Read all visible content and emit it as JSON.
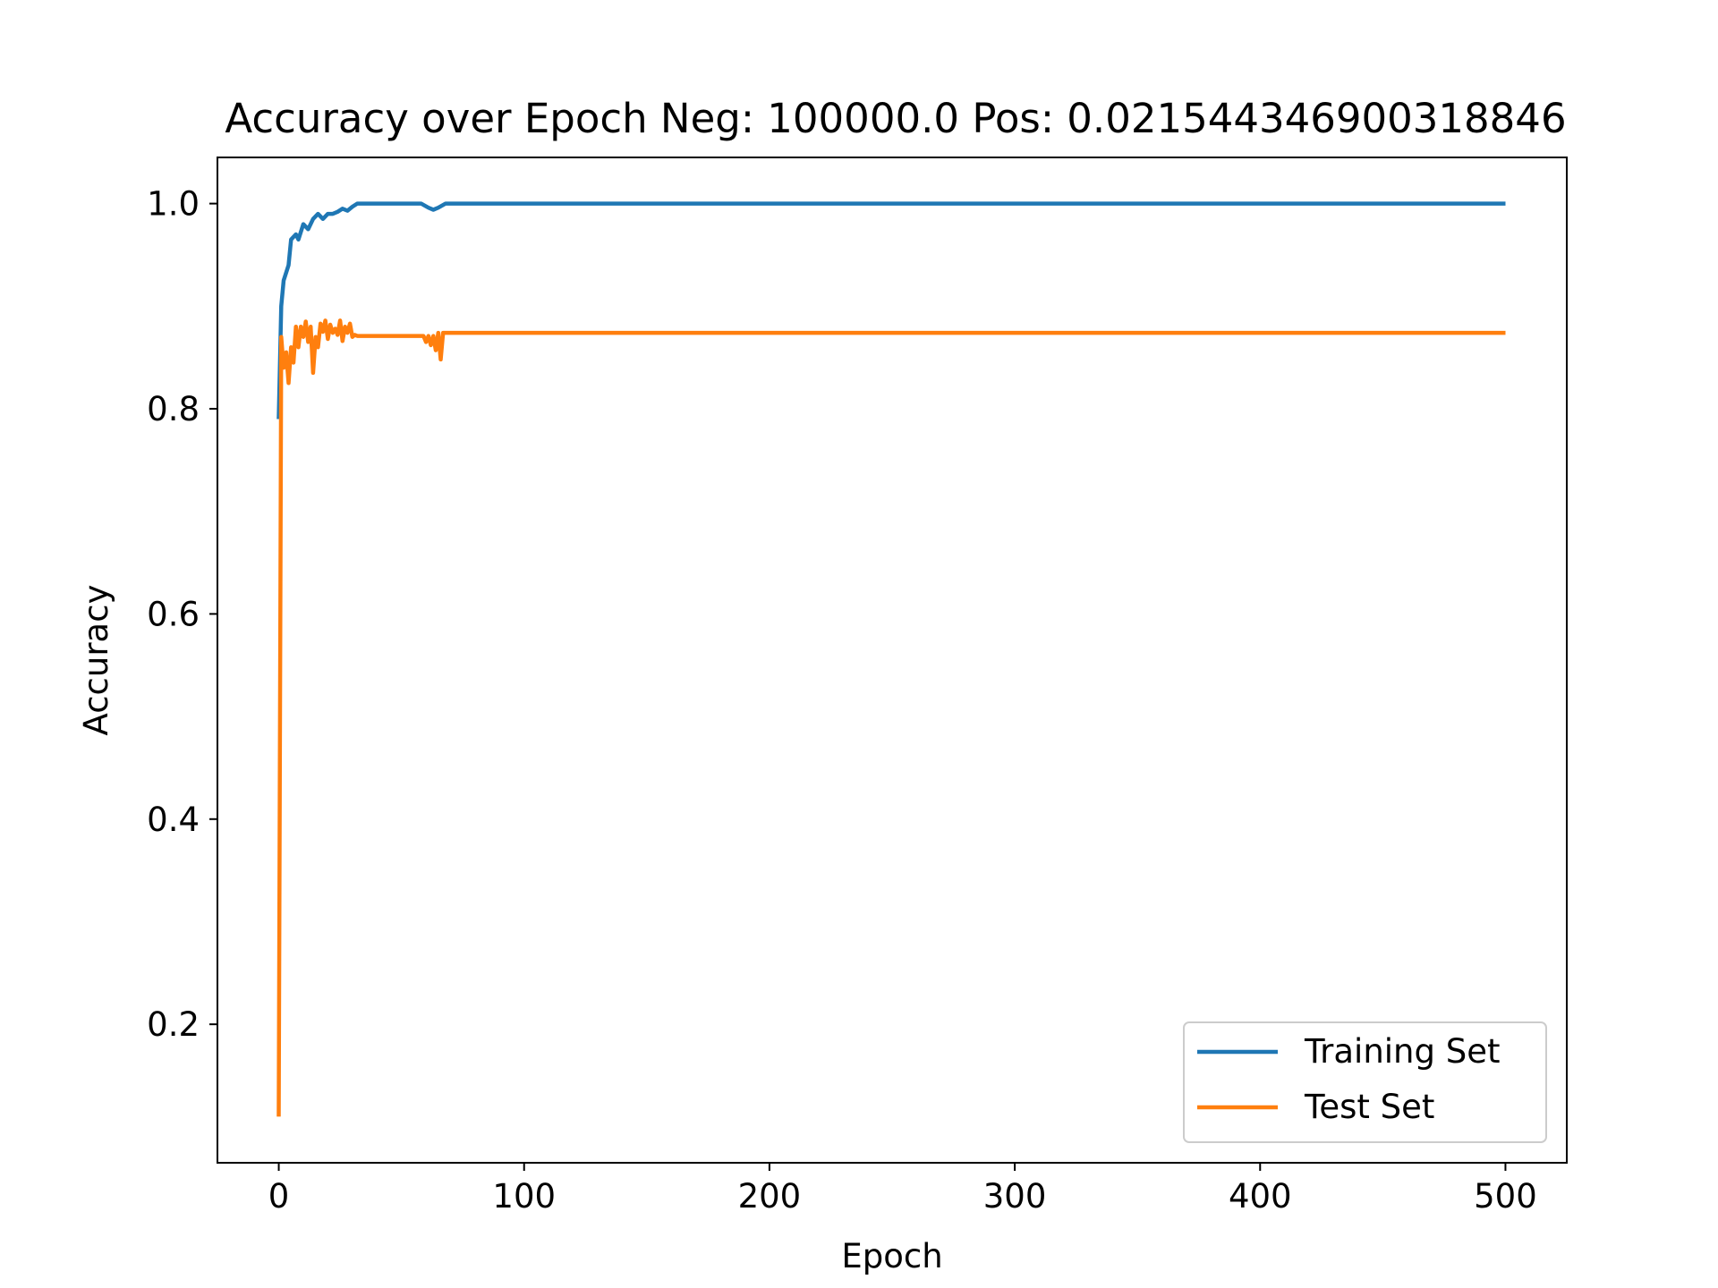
{
  "chart_data": {
    "type": "line",
    "title": "Accuracy over Epoch Neg: 100000.0 Pos: 0.021544346900318846",
    "xlabel": "Epoch",
    "ylabel": "Accuracy",
    "xlim": [
      -25,
      525
    ],
    "ylim": [
      0.065,
      1.045
    ],
    "xticks": [
      0,
      100,
      200,
      300,
      400,
      500
    ],
    "xtick_labels": [
      "0",
      "100",
      "200",
      "300",
      "400",
      "500"
    ],
    "yticks": [
      0.2,
      0.4,
      0.6,
      0.8,
      1.0
    ],
    "ytick_labels": [
      "0.2",
      "0.4",
      "0.6",
      "0.8",
      "1.0"
    ],
    "grid": false,
    "legend_position": "bottom-right",
    "series": [
      {
        "name": "Training Set",
        "color": "#1f77b4",
        "points": [
          [
            0,
            0.79
          ],
          [
            1,
            0.9
          ],
          [
            2,
            0.925
          ],
          [
            4,
            0.94
          ],
          [
            5,
            0.965
          ],
          [
            7,
            0.97
          ],
          [
            8,
            0.965
          ],
          [
            10,
            0.98
          ],
          [
            12,
            0.975
          ],
          [
            14,
            0.985
          ],
          [
            16,
            0.99
          ],
          [
            18,
            0.985
          ],
          [
            20,
            0.99
          ],
          [
            22,
            0.99
          ],
          [
            24,
            0.992
          ],
          [
            26,
            0.995
          ],
          [
            28,
            0.993
          ],
          [
            30,
            0.997
          ],
          [
            32,
            1.0
          ],
          [
            58,
            1.0
          ],
          [
            61,
            0.996
          ],
          [
            63,
            0.994
          ],
          [
            65,
            0.996
          ],
          [
            68,
            1.0
          ],
          [
            500,
            1.0
          ]
        ]
      },
      {
        "name": "Test Set",
        "color": "#ff7f0e",
        "points": [
          [
            0,
            0.11
          ],
          [
            1,
            0.87
          ],
          [
            2,
            0.84
          ],
          [
            3,
            0.855
          ],
          [
            4,
            0.825
          ],
          [
            5,
            0.86
          ],
          [
            6,
            0.845
          ],
          [
            7,
            0.88
          ],
          [
            8,
            0.86
          ],
          [
            9,
            0.88
          ],
          [
            10,
            0.87
          ],
          [
            11,
            0.885
          ],
          [
            12,
            0.865
          ],
          [
            13,
            0.88
          ],
          [
            14,
            0.835
          ],
          [
            15,
            0.87
          ],
          [
            16,
            0.86
          ],
          [
            17,
            0.883
          ],
          [
            18,
            0.875
          ],
          [
            19,
            0.886
          ],
          [
            20,
            0.868
          ],
          [
            21,
            0.882
          ],
          [
            22,
            0.874
          ],
          [
            23,
            0.878
          ],
          [
            24,
            0.872
          ],
          [
            25,
            0.886
          ],
          [
            26,
            0.866
          ],
          [
            27,
            0.88
          ],
          [
            28,
            0.874
          ],
          [
            29,
            0.883
          ],
          [
            30,
            0.87
          ],
          [
            31,
            0.872
          ],
          [
            32,
            0.871
          ],
          [
            40,
            0.871
          ],
          [
            50,
            0.871
          ],
          [
            59,
            0.871
          ],
          [
            60,
            0.865
          ],
          [
            61,
            0.871
          ],
          [
            62,
            0.862
          ],
          [
            63,
            0.871
          ],
          [
            64,
            0.857
          ],
          [
            65,
            0.874
          ],
          [
            66,
            0.848
          ],
          [
            67,
            0.874
          ],
          [
            68,
            0.874
          ],
          [
            500,
            0.874
          ]
        ]
      }
    ]
  }
}
